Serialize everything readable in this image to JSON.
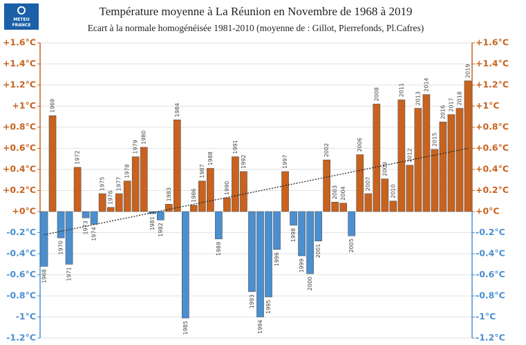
{
  "chart_data": {
    "type": "bar",
    "title": "Température moyenne à La Réunion en Novembre de 1968 à 2019",
    "subtitle": "Ecart à la normale homogénéisée 1981-2010 (moyenne de : Gillot, Pierrefonds, Pl.Cafres)",
    "logo": [
      "METEO",
      "FRANCE"
    ],
    "categories": [
      "1968",
      "1969",
      "1970",
      "1971",
      "1972",
      "1973",
      "1974",
      "1975",
      "1976",
      "1977",
      "1978",
      "1979",
      "1980",
      "1981",
      "1982",
      "1983",
      "1984",
      "1985",
      "1986",
      "1987",
      "1988",
      "1989",
      "1990",
      "1991",
      "1992",
      "1993",
      "1994",
      "1995",
      "1996",
      "1997",
      "1998",
      "1999",
      "2000",
      "2001",
      "2002",
      "2003",
      "2004",
      "2005",
      "2006",
      "2007",
      "2008",
      "2009",
      "2010",
      "2011",
      "2012",
      "2013",
      "2014",
      "2015",
      "2016",
      "2017",
      "2018",
      "2019"
    ],
    "values": [
      -0.52,
      0.91,
      -0.25,
      -0.5,
      0.42,
      -0.06,
      -0.12,
      0.17,
      0.04,
      0.17,
      0.29,
      0.52,
      0.61,
      -0.02,
      -0.08,
      0.07,
      0.87,
      -1.01,
      0.06,
      0.29,
      0.41,
      -0.26,
      0.13,
      0.52,
      0.38,
      -0.76,
      -1.0,
      -0.81,
      -0.36,
      0.38,
      -0.13,
      -0.42,
      -0.59,
      -0.28,
      0.49,
      0.09,
      0.08,
      -0.23,
      0.54,
      0.17,
      1.02,
      0.31,
      0.1,
      1.06,
      0.44,
      0.98,
      1.11,
      0.59,
      0.85,
      0.92,
      0.98,
      1.24
    ],
    "positive_color": "#c8621e",
    "negative_color": "#4a8fd0",
    "trend": {
      "values": [
        -0.22,
        0.6
      ],
      "color": "#222222"
    },
    "ylim": [
      -1.2,
      1.6
    ],
    "yticks": [
      {
        "value": 1.6,
        "label": "+1.6°C"
      },
      {
        "value": 1.4,
        "label": "+1.4°C"
      },
      {
        "value": 1.2,
        "label": "+1.2°C"
      },
      {
        "value": 1,
        "label": "+1°C"
      },
      {
        "value": 0.8,
        "label": "+0.8°C"
      },
      {
        "value": 0.6,
        "label": "+0.6°C"
      },
      {
        "value": 0.4,
        "label": "+0.4°C"
      },
      {
        "value": 0.2,
        "label": "+0.2°C"
      },
      {
        "value": 0,
        "label": "+0°C"
      },
      {
        "value": -0.2,
        "label": "-0.2°C"
      },
      {
        "value": -0.4,
        "label": "-0.4°C"
      },
      {
        "value": -0.6,
        "label": "-0.6°C"
      },
      {
        "value": -0.8,
        "label": "-0.8°C"
      },
      {
        "value": -1,
        "label": "-1°C"
      },
      {
        "value": -1.2,
        "label": "-1.2°C"
      }
    ],
    "grid": true
  }
}
